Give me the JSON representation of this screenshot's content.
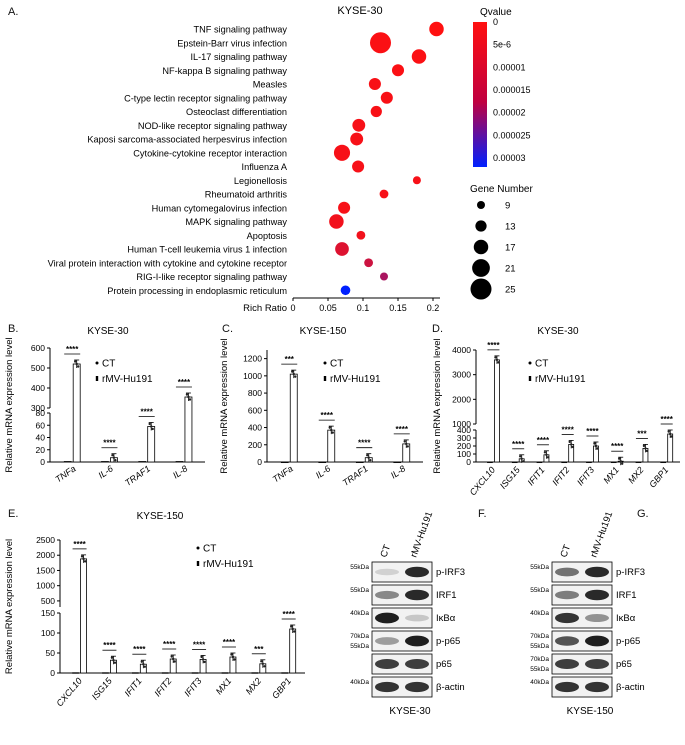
{
  "panel_labels": {
    "a": "A.",
    "b": "B.",
    "c": "C.",
    "d": "D.",
    "e": "E.",
    "f": "F.",
    "g": "G."
  },
  "legend": {
    "ct": "CT",
    "rmv": "rMV-Hu191"
  },
  "colors": {
    "bar_ct": "#333333",
    "bar_rmv": "#ffffff",
    "dot_mark": "#222222"
  },
  "chart_data": [
    {
      "id": "A",
      "type": "scatter",
      "title": "KYSE-30",
      "xlabel": "Rich Ratio",
      "xlim": [
        0,
        0.21
      ],
      "xticks": [
        "0",
        "0.05",
        "0.1",
        "0.15",
        "0.2"
      ],
      "categories": [
        "TNF signaling pathway",
        "Epstein-Barr virus infection",
        "IL-17 signaling pathway",
        "NF-kappa B signaling pathway",
        "Measles",
        "C-type lectin receptor signaling pathway",
        "Osteoclast differentiation",
        "NOD-like receptor signaling pathway",
        "Kaposi sarcoma-associated herpesvirus infection",
        "Cytokine-cytokine  receptor interaction",
        "Influenza A",
        "Legionellosis",
        "Rheumatoid arthritis",
        "Human cytomegalovirus infection",
        "MAPK signaling pathway",
        "Apoptosis",
        "Human T-cell leukemia virus 1 infection",
        "Viral protein interaction with cytokine and cytokine receptor",
        "RIG-I-like receptor signaling pathway",
        "Protein processing in endoplasmic reticulum"
      ],
      "rich_ratio": [
        0.205,
        0.125,
        0.18,
        0.15,
        0.117,
        0.134,
        0.119,
        0.094,
        0.091,
        0.07,
        0.093,
        0.177,
        0.13,
        0.073,
        0.062,
        0.097,
        0.07,
        0.108,
        0.13,
        0.075
      ],
      "gene_number": [
        17,
        25,
        17,
        14,
        14,
        14,
        13,
        15,
        15,
        19,
        14,
        9,
        10,
        14,
        17,
        10,
        16,
        10,
        9,
        11
      ],
      "qvalue": [
        0,
        5e-07,
        5e-07,
        5e-07,
        8e-07,
        8e-07,
        8e-07,
        1e-06,
        1e-06,
        1e-06,
        1e-06,
        1e-06,
        1e-06,
        1e-06,
        1.5e-06,
        1.5e-06,
        4e-06,
        6e-06,
        1e-05,
        3e-05
      ],
      "color_legend": {
        "title": "Qvalue",
        "ticks": [
          "0",
          "5e-6",
          "0.00001",
          "0.000015",
          "0.00002",
          "0.000025",
          "0.00003"
        ],
        "colors": [
          "#ff1010",
          "#0020ff"
        ]
      },
      "size_legend": {
        "title": "Gene Number",
        "values": [
          "9",
          "13",
          "17",
          "21",
          "25"
        ]
      }
    },
    {
      "id": "B",
      "type": "bar",
      "title": "KYSE-30",
      "ylabel": "Relative mRNA expression level",
      "categories": [
        "TNFa",
        "IL-6",
        "TRAF1",
        "IL-8"
      ],
      "series": [
        {
          "name": "CT",
          "values": [
            1,
            1,
            1,
            1
          ]
        },
        {
          "name": "rMV-Hu191",
          "values": [
            520,
            7,
            58,
            355
          ]
        }
      ],
      "significance": [
        "****",
        "****",
        "****",
        "****"
      ],
      "yaxis": {
        "lower": [
          0,
          80
        ],
        "upper": [
          300,
          600
        ],
        "lower_ticks": [
          "0",
          "20",
          "40",
          "60",
          "80"
        ],
        "upper_ticks": [
          "300",
          "400",
          "500",
          "600"
        ]
      }
    },
    {
      "id": "C",
      "type": "bar",
      "title": "KYSE-150",
      "ylabel": "Relative mRNA expression level",
      "categories": [
        "TNFa",
        "IL-6",
        "TRAF1",
        "IL-8"
      ],
      "series": [
        {
          "name": "CT",
          "values": [
            1,
            1,
            1,
            1
          ]
        },
        {
          "name": "rMV-Hu191",
          "values": [
            1020,
            370,
            50,
            210
          ]
        }
      ],
      "significance": [
        "***",
        "****",
        "****",
        "****"
      ],
      "ylim": [
        0,
        1300
      ],
      "yticks": [
        "0",
        "200",
        "400",
        "600",
        "800",
        "1000",
        "1200"
      ]
    },
    {
      "id": "D",
      "type": "bar",
      "title": "KYSE-30",
      "ylabel": "Relative mRNA expression level",
      "categories": [
        "CXCL10",
        "ISG15",
        "IFIT1",
        "IFIT2",
        "IFIT3",
        "MX1",
        "MX2",
        "GBP1"
      ],
      "series": [
        {
          "name": "CT",
          "values": [
            1,
            1,
            1,
            1,
            1,
            1,
            1,
            1
          ]
        },
        {
          "name": "rMV-Hu191",
          "values": [
            3600,
            40,
            90,
            220,
            200,
            10,
            170,
            350
          ]
        }
      ],
      "significance": [
        "****",
        "****",
        "****",
        "****",
        "****",
        "****",
        "***",
        "****"
      ],
      "yaxis": {
        "lower": [
          0,
          400
        ],
        "upper": [
          1000,
          4000
        ],
        "lower_ticks": [
          "0",
          "100",
          "200",
          "300",
          "400"
        ],
        "upper_ticks": [
          "1000",
          "2000",
          "3000",
          "4000"
        ]
      }
    },
    {
      "id": "E",
      "type": "bar",
      "title": "KYSE-150",
      "ylabel": "Relative mRNA expression level",
      "categories": [
        "CXCL10",
        "ISG15",
        "IFIT1",
        "IFIT2",
        "IFIT3",
        "MX1",
        "MX2",
        "GBP1"
      ],
      "series": [
        {
          "name": "CT",
          "values": [
            1,
            1,
            1,
            1,
            1,
            1,
            1,
            1
          ]
        },
        {
          "name": "rMV-Hu191",
          "values": [
            1880,
            32,
            22,
            35,
            34,
            40,
            23,
            110
          ]
        }
      ],
      "significance": [
        "****",
        "****",
        "****",
        "****",
        "****",
        "****",
        "***",
        "****"
      ],
      "yaxis": {
        "lower": [
          0,
          150
        ],
        "upper": [
          300,
          2500
        ],
        "lower_ticks": [
          "0",
          "50",
          "100",
          "150"
        ],
        "upper_ticks": [
          "500",
          "1000",
          "1500",
          "2000",
          "2500"
        ]
      }
    }
  ],
  "blots": [
    {
      "id": "F",
      "caption": "KYSE-30",
      "lanes": [
        "CT",
        "rMV-Hu191"
      ],
      "rows": [
        {
          "marker": "55kDa",
          "marker2": "",
          "protein": "p-IRF3",
          "intensity": [
            0.1,
            0.9
          ]
        },
        {
          "marker": "55kDa",
          "marker2": "",
          "protein": "IRF1",
          "intensity": [
            0.45,
            0.9
          ]
        },
        {
          "marker": "40kDa",
          "marker2": "",
          "protein": "IκBα",
          "intensity": [
            0.95,
            0.15
          ]
        },
        {
          "marker": "70kDa",
          "marker2": "55kDa",
          "protein": "p-p65",
          "intensity": [
            0.35,
            0.95
          ]
        },
        {
          "marker": "",
          "marker2": "",
          "protein": "p65",
          "intensity": [
            0.8,
            0.8
          ]
        },
        {
          "marker": "40kDa",
          "marker2": "",
          "protein": "β-actin",
          "intensity": [
            0.85,
            0.85
          ]
        }
      ]
    },
    {
      "id": "G",
      "caption": "KYSE-150",
      "lanes": [
        "CT",
        "rMV-Hu191"
      ],
      "rows": [
        {
          "marker": "55kDa",
          "marker2": "",
          "protein": "p-IRF3",
          "intensity": [
            0.55,
            0.9
          ]
        },
        {
          "marker": "55kDa",
          "marker2": "",
          "protein": "IRF1",
          "intensity": [
            0.5,
            0.9
          ]
        },
        {
          "marker": "40kDa",
          "marker2": "",
          "protein": "IκBα",
          "intensity": [
            0.85,
            0.4
          ]
        },
        {
          "marker": "70kDa",
          "marker2": "55kDa",
          "protein": "p-p65",
          "intensity": [
            0.7,
            0.95
          ]
        },
        {
          "marker": "70kDa",
          "marker2": "55kDa",
          "protein": "p65",
          "intensity": [
            0.8,
            0.8
          ]
        },
        {
          "marker": "40kDa",
          "marker2": "",
          "protein": "β-actin",
          "intensity": [
            0.85,
            0.85
          ]
        }
      ]
    }
  ]
}
